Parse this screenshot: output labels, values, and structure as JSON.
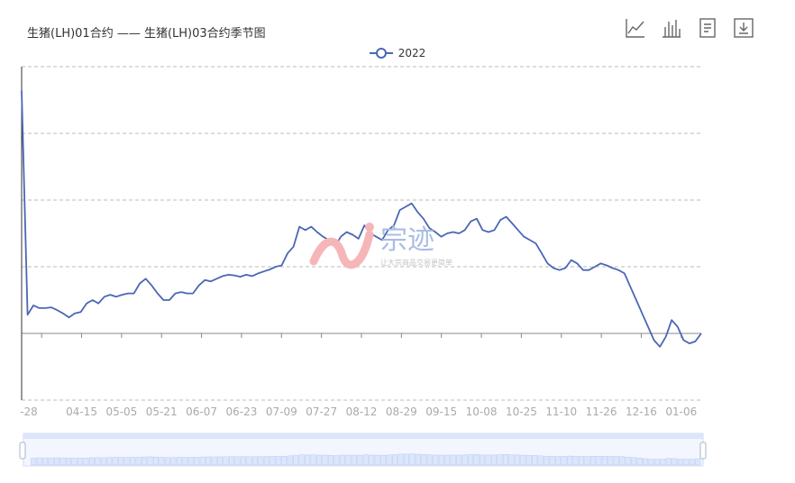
{
  "title": "生猪(LH)01合约 —— 生猪(LH)03合约季节图",
  "toolbox": {
    "items": [
      {
        "name": "line-chart-icon"
      },
      {
        "name": "bar-chart-icon"
      },
      {
        "name": "data-view-icon"
      },
      {
        "name": "download-icon"
      }
    ]
  },
  "watermark": {
    "brand": "宗迹",
    "slogan": "让大宗商品交易更简单"
  },
  "colors": {
    "series": "#4a67b5",
    "axis": "#333333",
    "grid": "#bbbbbb",
    "tick_label": "#aaaaaa",
    "zoom_fill": "#dce6fb",
    "zoom_bar": "#aec4f1"
  },
  "chart_data": {
    "type": "line",
    "title": "生猪(LH)01合约 —— 生猪(LH)03合约季节图",
    "legend_position": "top-center",
    "grid": true,
    "y_axis_labels_visible": false,
    "ylim": [
      -1,
      4
    ],
    "x_tick_labels": [
      "-28",
      "04-15",
      "05-05",
      "05-21",
      "06-07",
      "06-23",
      "07-09",
      "07-27",
      "08-12",
      "08-29",
      "09-15",
      "10-08",
      "10-25",
      "11-10",
      "11-26",
      "12-16",
      "01-06"
    ],
    "series": [
      {
        "name": "2022",
        "color": "#4a67b5",
        "values": [
          3.64,
          0.28,
          0.42,
          0.38,
          0.38,
          0.39,
          0.35,
          0.3,
          0.24,
          0.3,
          0.32,
          0.45,
          0.5,
          0.45,
          0.55,
          0.58,
          0.55,
          0.58,
          0.6,
          0.6,
          0.75,
          0.82,
          0.72,
          0.6,
          0.5,
          0.5,
          0.6,
          0.62,
          0.6,
          0.6,
          0.72,
          0.8,
          0.78,
          0.82,
          0.86,
          0.88,
          0.87,
          0.85,
          0.88,
          0.86,
          0.9,
          0.93,
          0.96,
          1.0,
          1.02,
          1.2,
          1.3,
          1.6,
          1.55,
          1.6,
          1.52,
          1.45,
          1.4,
          1.3,
          1.45,
          1.52,
          1.48,
          1.42,
          1.62,
          1.5,
          1.45,
          1.4,
          1.55,
          1.62,
          1.85,
          1.9,
          1.95,
          1.82,
          1.72,
          1.58,
          1.52,
          1.45,
          1.5,
          1.52,
          1.5,
          1.55,
          1.68,
          1.72,
          1.55,
          1.52,
          1.55,
          1.7,
          1.75,
          1.65,
          1.55,
          1.45,
          1.4,
          1.35,
          1.2,
          1.05,
          0.98,
          0.95,
          0.98,
          1.1,
          1.05,
          0.95,
          0.95,
          1.0,
          1.05,
          1.02,
          0.98,
          0.95,
          0.9,
          0.7,
          0.5,
          0.3,
          0.1,
          -0.1,
          -0.2,
          -0.05,
          0.2,
          0.1,
          -0.1,
          -0.15,
          -0.12,
          0.0
        ]
      }
    ]
  }
}
